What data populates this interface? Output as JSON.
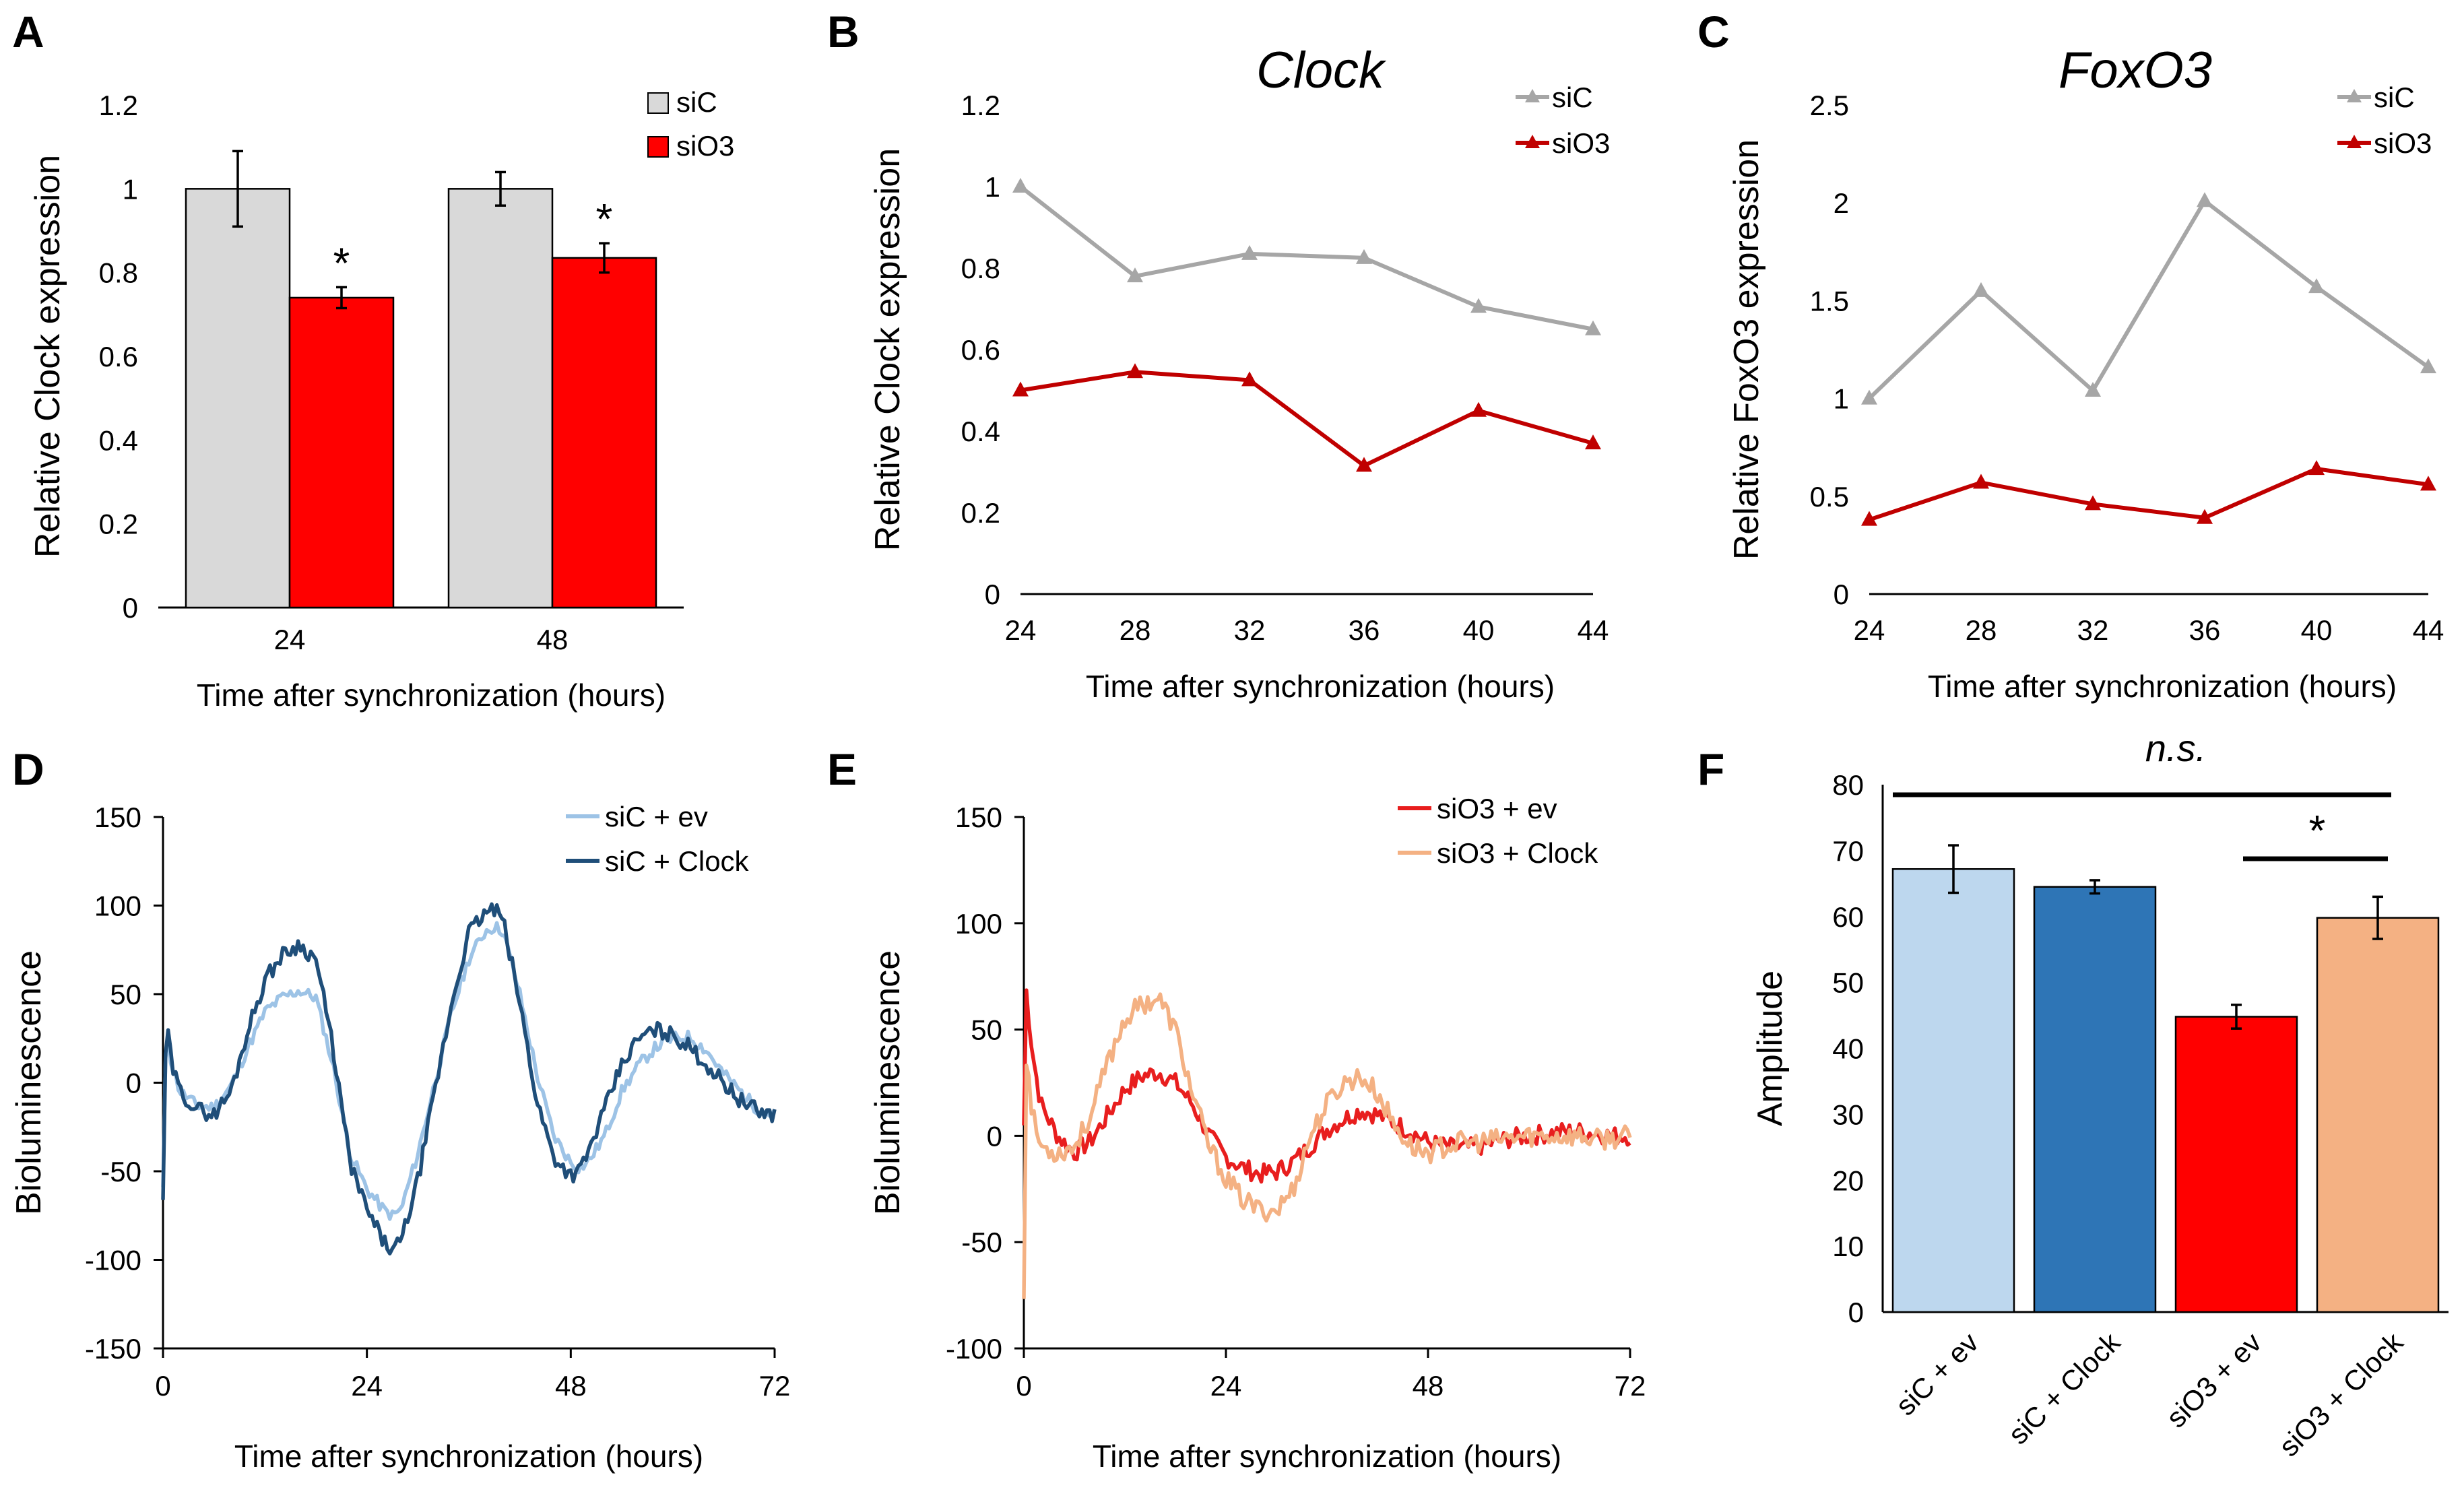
{
  "colors": {
    "siC_gray": "#A6A6A6",
    "siO3_red": "#C00000",
    "bar_siC": "#D9D9D9",
    "bar_siO3": "#FF0000",
    "siC_ev": "#9DC3E6",
    "siC_clock": "#1F4E79",
    "siO3_ev": "#E81E1E",
    "siO3_clock": "#F4B183",
    "F_siC_ev": "#BDD7EE",
    "F_siC_clock": "#2E75B6",
    "F_siO3_ev": "#FF0000",
    "F_siO3_clock": "#F4B183",
    "axis": "#000000"
  },
  "panels": {
    "A": {
      "letter": "A"
    },
    "B": {
      "letter": "B"
    },
    "C": {
      "letter": "C"
    },
    "D": {
      "letter": "D"
    },
    "E": {
      "letter": "E"
    },
    "F": {
      "letter": "F"
    }
  },
  "chart_data": [
    {
      "panel": "A",
      "type": "bar",
      "title": "",
      "xlabel": "Time after synchronization (hours)",
      "ylabel": "Relative Clock expression",
      "categories": [
        "24",
        "48"
      ],
      "series": [
        {
          "name": "siC",
          "values": [
            1.0,
            1.0
          ],
          "errors": [
            0.09,
            0.04
          ]
        },
        {
          "name": "siO3",
          "values": [
            0.74,
            0.835
          ],
          "errors": [
            0.025,
            0.035
          ]
        }
      ],
      "significance": [
        "*",
        "*"
      ],
      "ylim": [
        0,
        1.2
      ],
      "yticks": [
        0,
        0.2,
        0.4,
        0.6,
        0.8,
        1,
        1.2
      ],
      "yticklabels": [
        "0",
        "0.2",
        "0.4",
        "0.6",
        "0.8",
        "1",
        "1.2"
      ],
      "legend": "top-right"
    },
    {
      "panel": "B",
      "type": "line",
      "title": "Clock",
      "xlabel": "Time after synchronization (hours)",
      "ylabel": "Relative Clock expression",
      "x": [
        24,
        28,
        32,
        36,
        40,
        44
      ],
      "series": [
        {
          "name": "siC",
          "values": [
            1.0,
            0.78,
            0.835,
            0.825,
            0.705,
            0.65
          ]
        },
        {
          "name": "siO3",
          "values": [
            0.5,
            0.545,
            0.525,
            0.315,
            0.45,
            0.37
          ]
        }
      ],
      "xlim": [
        24,
        44
      ],
      "xticks": [
        "24",
        "28",
        "32",
        "36",
        "40",
        "44"
      ],
      "ylim": [
        0,
        1.2
      ],
      "yticks": [
        0,
        0.2,
        0.4,
        0.6,
        0.8,
        1,
        1.2
      ],
      "yticklabels": [
        "0",
        "0.2",
        "0.4",
        "0.6",
        "0.8",
        "1",
        "1.2"
      ],
      "legend": "top-right"
    },
    {
      "panel": "C",
      "type": "line",
      "title": "FoxO3",
      "xlabel": "Time after synchronization (hours)",
      "ylabel": "Relative FoxO3 expression",
      "x": [
        24,
        28,
        32,
        36,
        40,
        44
      ],
      "series": [
        {
          "name": "siC",
          "values": [
            1.0,
            1.55,
            1.04,
            2.01,
            1.57,
            1.16
          ]
        },
        {
          "name": "siO3",
          "values": [
            0.38,
            0.57,
            0.46,
            0.39,
            0.64,
            0.56
          ]
        }
      ],
      "xlim": [
        24,
        44
      ],
      "xticks": [
        "24",
        "28",
        "32",
        "36",
        "40",
        "44"
      ],
      "ylim": [
        0,
        2.5
      ],
      "yticks": [
        0,
        0.5,
        1,
        1.5,
        2,
        2.5
      ],
      "yticklabels": [
        "0",
        "0.5",
        "1",
        "1.5",
        "2",
        "2.5"
      ],
      "legend": "top-right"
    },
    {
      "panel": "D",
      "type": "line",
      "title": "",
      "xlabel": "Time after synchronization (hours)",
      "ylabel": "Bioluminescence",
      "x": [
        0,
        0.4,
        1,
        2,
        4,
        6,
        8,
        10,
        12,
        14,
        15,
        16,
        18,
        20,
        22,
        24,
        26,
        27,
        28,
        30,
        32,
        34,
        36,
        38,
        39,
        40,
        42,
        44,
        46,
        48,
        49,
        50,
        52,
        54,
        56,
        58,
        60,
        62,
        64,
        66,
        68,
        70,
        72
      ],
      "series": [
        {
          "name": "siC + ev",
          "values": [
            -60,
            35,
            10,
            -5,
            -13,
            -14,
            -2,
            20,
            40,
            48,
            50,
            52,
            48,
            10,
            -40,
            -60,
            -72,
            -75,
            -72,
            -40,
            0,
            40,
            70,
            86,
            88,
            86,
            50,
            5,
            -30,
            -45,
            -48,
            -45,
            -30,
            -5,
            10,
            20,
            25,
            26,
            18,
            5,
            -5,
            -15,
            -18
          ]
        },
        {
          "name": "siC + Clock",
          "values": [
            -65,
            38,
            10,
            -5,
            -15,
            -18,
            -5,
            30,
            58,
            72,
            75,
            78,
            70,
            20,
            -45,
            -72,
            -90,
            -95,
            -90,
            -55,
            -5,
            45,
            85,
            96,
            98,
            92,
            45,
            -10,
            -42,
            -52,
            -50,
            -40,
            -15,
            10,
            25,
            30,
            27,
            20,
            10,
            0,
            -10,
            -16,
            -18
          ]
        }
      ],
      "xlim": [
        0,
        72
      ],
      "xticks": [
        "0",
        "24",
        "48",
        "72"
      ],
      "ylim": [
        -150,
        150
      ],
      "yticks": [
        -150,
        -100,
        -50,
        0,
        50,
        100,
        150
      ],
      "yticklabels": [
        "-150",
        "-100",
        "-50",
        "0",
        "50",
        "100",
        "150"
      ],
      "legend": "top-right"
    },
    {
      "panel": "E",
      "type": "line",
      "title": "",
      "xlabel": "Time after synchronization (hours)",
      "ylabel": "Bioluminescence",
      "x": [
        0,
        0.3,
        1,
        2,
        4,
        6,
        8,
        10,
        12,
        14,
        16,
        18,
        20,
        22,
        24,
        26,
        28,
        30,
        32,
        34,
        36,
        38,
        40,
        42,
        44,
        46,
        48,
        50,
        52,
        54,
        56,
        58,
        60,
        62,
        64,
        66,
        68,
        70,
        72
      ],
      "series": [
        {
          "name": "siO3 + ev",
          "values": [
            5,
            68,
            40,
            15,
            0,
            -8,
            -2,
            10,
            22,
            28,
            30,
            25,
            15,
            0,
            -10,
            -15,
            -18,
            -17,
            -12,
            -5,
            3,
            8,
            12,
            10,
            6,
            2,
            -3,
            -5,
            -6,
            -5,
            -3,
            -1,
            0,
            1,
            2,
            2,
            1,
            0,
            0
          ]
        },
        {
          "name": "siO3 + Clock",
          "values": [
            -75,
            38,
            10,
            -5,
            -8,
            -5,
            10,
            35,
            55,
            62,
            65,
            50,
            20,
            -5,
            -20,
            -30,
            -35,
            -35,
            -25,
            0,
            15,
            25,
            28,
            20,
            5,
            -5,
            -8,
            -5,
            -3,
            -3,
            -2,
            -1,
            0,
            0,
            0,
            0,
            -2,
            -1,
            0
          ]
        }
      ],
      "xlim": [
        0,
        72
      ],
      "xticks": [
        "0",
        "24",
        "48",
        "72"
      ],
      "ylim": [
        -100,
        150
      ],
      "yticks": [
        -100,
        -50,
        0,
        50,
        100,
        150
      ],
      "yticklabels": [
        "-100",
        "-50",
        "0",
        "50",
        "100",
        "150"
      ],
      "legend": "top-right"
    },
    {
      "panel": "F",
      "type": "bar",
      "title": "",
      "xlabel": "",
      "ylabel": "Amplitude",
      "categories": [
        "siC + ev",
        "siC + Clock",
        "siO3 + ev",
        "siO3 + Clock"
      ],
      "values": [
        67.2,
        64.5,
        44.8,
        59.8
      ],
      "errors": [
        3.6,
        1.0,
        1.8,
        3.2
      ],
      "ylim": [
        0,
        80
      ],
      "yticks": [
        0,
        10,
        20,
        30,
        40,
        50,
        60,
        70,
        80
      ],
      "yticklabels": [
        "0",
        "10",
        "20",
        "30",
        "40",
        "50",
        "60",
        "70",
        "80"
      ],
      "annotations": [
        {
          "text": "n.s.",
          "from": 0,
          "to": 3
        },
        {
          "text": "*",
          "from": 2,
          "to": 3
        }
      ]
    }
  ]
}
